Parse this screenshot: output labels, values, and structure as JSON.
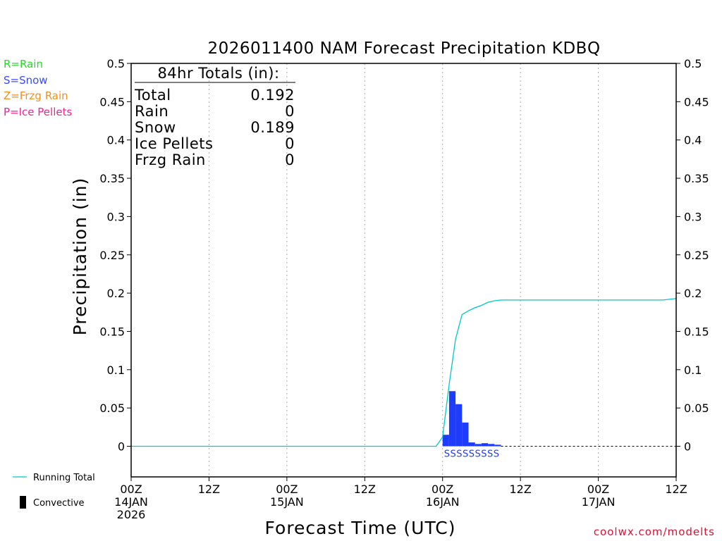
{
  "chart_data": {
    "type": "bar",
    "title": "2026011400 NAM Forecast Precipitation KDBQ",
    "xlabel": "Forecast Time (UTC)",
    "ylabel": "Precipitation (in)",
    "ylim": [
      -0.04,
      0.5
    ],
    "yticks": [
      "0",
      "0.05",
      "0.1",
      "0.15",
      "0.2",
      "0.25",
      "0.3",
      "0.35",
      "0.4",
      "0.45",
      "0.5"
    ],
    "xlim_hours": [
      0,
      84
    ],
    "x_ticks": [
      {
        "hour": 0,
        "line1": "00Z",
        "line2": "14JAN",
        "line3": "2026"
      },
      {
        "hour": 12,
        "line1": "12Z",
        "line2": "",
        "line3": ""
      },
      {
        "hour": 24,
        "line1": "00Z",
        "line2": "15JAN",
        "line3": ""
      },
      {
        "hour": 36,
        "line1": "12Z",
        "line2": "",
        "line3": ""
      },
      {
        "hour": 48,
        "line1": "00Z",
        "line2": "16JAN",
        "line3": ""
      },
      {
        "hour": 60,
        "line1": "12Z",
        "line2": "",
        "line3": ""
      },
      {
        "hour": 72,
        "line1": "00Z",
        "line2": "17JAN",
        "line3": ""
      },
      {
        "hour": 84,
        "line1": "12Z",
        "line2": "",
        "line3": ""
      }
    ],
    "snow_bars": {
      "name": "Snow",
      "color": "#1e3cff",
      "bar_width_hours": 1,
      "hours": [
        48,
        49,
        50,
        51,
        52,
        53,
        54,
        55,
        56
      ],
      "values": [
        0.015,
        0.072,
        0.055,
        0.031,
        0.005,
        0.003,
        0.004,
        0.003,
        0.002
      ]
    },
    "running_total": {
      "name": "Running Total",
      "color": "#00c8c8",
      "hours": [
        0,
        47,
        48,
        49,
        50,
        51,
        52,
        53,
        54,
        55,
        56,
        57,
        60,
        66,
        72,
        78,
        82,
        84
      ],
      "values": [
        0,
        0,
        0.012,
        0.08,
        0.14,
        0.172,
        0.177,
        0.181,
        0.184,
        0.188,
        0.19,
        0.191,
        0.191,
        0.191,
        0.191,
        0.191,
        0.191,
        0.193
      ]
    },
    "ptype_markers": {
      "text": "SSSSSSSSS",
      "color": "#1e3cff"
    },
    "totals_box": {
      "header": "84hr Totals (in):",
      "rows": [
        {
          "label": "Total",
          "value": "0.192"
        },
        {
          "label": "Rain",
          "value": "0"
        },
        {
          "label": "Snow",
          "value": "0.189"
        },
        {
          "label": "Ice Pellets",
          "value": "0"
        },
        {
          "label": "Frzg Rain",
          "value": "0"
        }
      ]
    },
    "ptype_legend": [
      {
        "text": "R=Rain",
        "color": "#22dd22"
      },
      {
        "text": "S=Snow",
        "color": "#3a4cff"
      },
      {
        "text": "Z=Frzg Rain",
        "color": "#f09020"
      },
      {
        "text": "P=Ice Pellets",
        "color": "#ee2299"
      }
    ],
    "line_legend": {
      "running_total": "Running Total",
      "convective": "Convective"
    },
    "credit": "coolwx.com/modelts",
    "credit_color": "#dd1133"
  }
}
